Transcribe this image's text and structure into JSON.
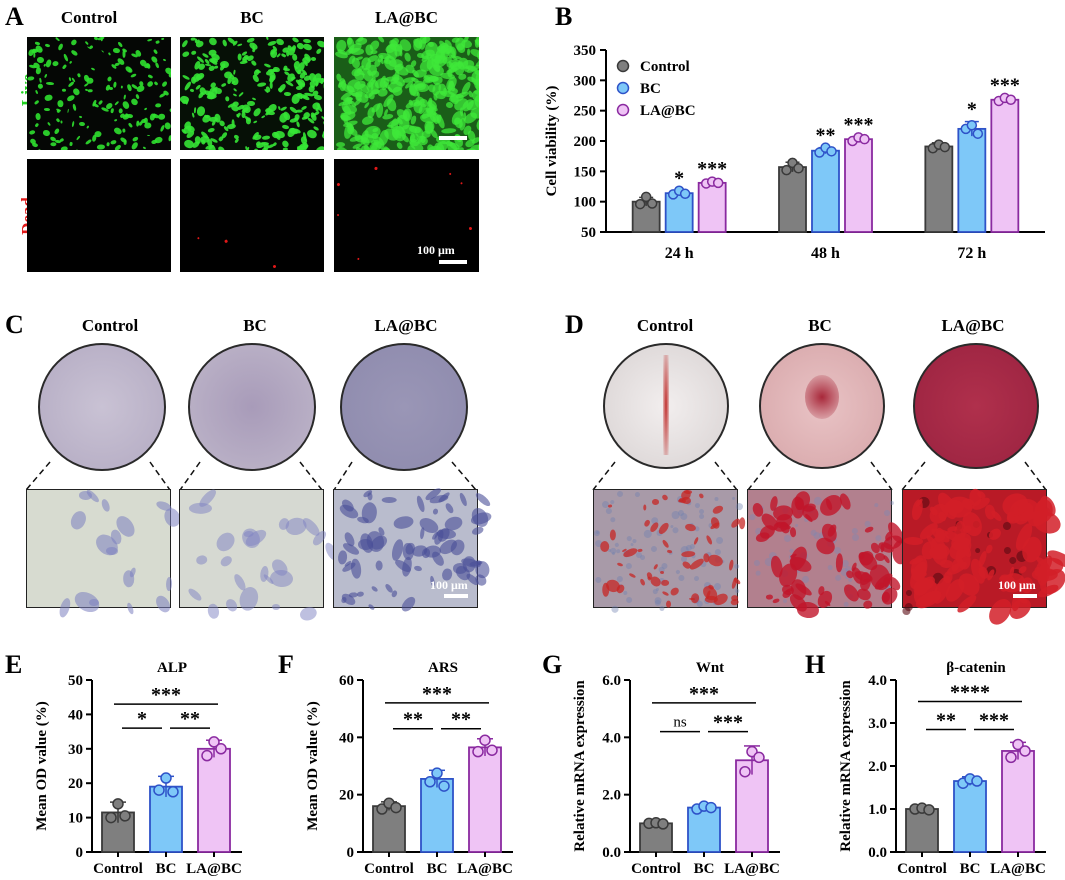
{
  "panels": {
    "A": {
      "letter": "A",
      "columns": [
        "Control",
        "BC",
        "LA@BC"
      ],
      "rows": [
        "Live",
        "Dead"
      ],
      "scale": "100 μm",
      "colors": {
        "live": "#1fd11f",
        "dead": "#e01818"
      }
    },
    "C": {
      "letter": "C",
      "columns": [
        "Control",
        "BC",
        "LA@BC"
      ],
      "scale": "100 μm"
    },
    "D": {
      "letter": "D",
      "columns": [
        "Control",
        "BC",
        "LA@BC"
      ],
      "scale": "100 μm"
    },
    "B": {
      "letter": "B"
    },
    "E": {
      "letter": "E"
    },
    "F": {
      "letter": "F"
    },
    "G": {
      "letter": "G"
    },
    "H": {
      "letter": "H"
    }
  },
  "colors": {
    "Control": "#7f7f7f",
    "BC": "#7ec8f8",
    "LA@BC": "#efc4f5",
    "edge_Control": "#3a3a3a",
    "edge_BC": "#2e52c8",
    "edge_LA@BC": "#8a2aa0"
  },
  "chart_data": [
    {
      "id": "B",
      "type": "bar",
      "categories": [
        "24 h",
        "48 h",
        "72 h"
      ],
      "series": [
        {
          "name": "Control",
          "values": [
            100,
            157,
            191
          ],
          "err": [
            7,
            8,
            6
          ],
          "points": [
            [
              96,
              108,
              97
            ],
            [
              152,
              164,
              155
            ],
            [
              188,
              194,
              190
            ]
          ],
          "sig": [
            "",
            "",
            ""
          ]
        },
        {
          "name": "BC",
          "values": [
            114,
            184,
            220
          ],
          "err": [
            4,
            5,
            12
          ],
          "points": [
            [
              112,
              118,
              113
            ],
            [
              181,
              189,
              183
            ],
            [
              220,
              226,
              212
            ]
          ],
          "sig": [
            "*",
            "**",
            "*"
          ]
        },
        {
          "name": "LA@BC",
          "values": [
            131,
            203,
            268
          ],
          "err": [
            3,
            4,
            4
          ],
          "points": [
            [
              130,
              133,
              131
            ],
            [
              200,
              206,
              203
            ],
            [
              266,
              271,
              268
            ]
          ],
          "sig": [
            "***",
            "***",
            "***"
          ]
        }
      ],
      "ylabel": "Cell viability (%)",
      "ylim": [
        50,
        350
      ],
      "yticks": [
        50,
        100,
        150,
        200,
        250,
        300,
        350
      ],
      "legend": "top-left"
    },
    {
      "id": "E",
      "type": "bar",
      "title": "ALP",
      "categories": [
        "Control",
        "BC",
        "LA@BC"
      ],
      "values": [
        11.5,
        19,
        30
      ],
      "err": [
        3,
        3,
        2.5
      ],
      "points": [
        [
          10,
          14,
          10.5
        ],
        [
          18,
          21.5,
          17.5
        ],
        [
          28,
          32,
          30
        ]
      ],
      "ylabel": "Mean OD value (%)",
      "ylim": [
        0,
        50
      ],
      "yticks": [
        0,
        10,
        20,
        30,
        40,
        50
      ],
      "sig": [
        {
          "a": 0,
          "b": 2,
          "label": "***",
          "level": 43
        },
        {
          "a": 0,
          "b": 1,
          "label": "*",
          "level": 36
        },
        {
          "a": 1,
          "b": 2,
          "label": "**",
          "level": 36
        }
      ]
    },
    {
      "id": "F",
      "type": "bar",
      "title": "ARS",
      "categories": [
        "Control",
        "BC",
        "LA@BC"
      ],
      "values": [
        16,
        25.5,
        36.5
      ],
      "err": [
        1.5,
        3,
        3
      ],
      "points": [
        [
          15,
          17,
          15.5
        ],
        [
          24.5,
          27.5,
          23
        ],
        [
          35,
          39,
          35.5
        ]
      ],
      "ylabel": "Mean OD value (%)",
      "ylim": [
        0,
        60
      ],
      "yticks": [
        0,
        20,
        40,
        60
      ],
      "sig": [
        {
          "a": 0,
          "b": 2,
          "label": "***",
          "level": 52
        },
        {
          "a": 0,
          "b": 1,
          "label": "**",
          "level": 43
        },
        {
          "a": 1,
          "b": 2,
          "label": "**",
          "level": 43
        }
      ]
    },
    {
      "id": "G",
      "type": "bar",
      "title": "Wnt",
      "categories": [
        "Control",
        "BC",
        "LA@BC"
      ],
      "values": [
        1.0,
        1.55,
        3.2
      ],
      "err": [
        0.05,
        0.08,
        0.5
      ],
      "points": [
        [
          1.0,
          1.02,
          0.98
        ],
        [
          1.5,
          1.6,
          1.55
        ],
        [
          2.8,
          3.5,
          3.3
        ]
      ],
      "ylabel": "Relative mRNA expression",
      "ylim": [
        0,
        6
      ],
      "yticks": [
        "0.0",
        "2.0",
        "4.0",
        "6.0"
      ],
      "sig": [
        {
          "a": 0,
          "b": 2,
          "label": "***",
          "level": 5.2
        },
        {
          "a": 0,
          "b": 1,
          "label": "ns",
          "level": 4.2
        },
        {
          "a": 1,
          "b": 2,
          "label": "***",
          "level": 4.2
        }
      ]
    },
    {
      "id": "H",
      "type": "bar",
      "title": "β-catenin",
      "categories": [
        "Control",
        "BC",
        "LA@BC"
      ],
      "values": [
        1.0,
        1.65,
        2.35
      ],
      "err": [
        0.04,
        0.1,
        0.2
      ],
      "points": [
        [
          1.0,
          1.02,
          0.98
        ],
        [
          1.6,
          1.7,
          1.65
        ],
        [
          2.2,
          2.5,
          2.35
        ]
      ],
      "ylabel": "Relative mRNA expression",
      "ylim": [
        0,
        4
      ],
      "yticks": [
        "0.0",
        "1.0",
        "2.0",
        "3.0",
        "4.0"
      ],
      "sig": [
        {
          "a": 0,
          "b": 2,
          "label": "****",
          "level": 3.5
        },
        {
          "a": 0,
          "b": 1,
          "label": "**",
          "level": 2.85
        },
        {
          "a": 1,
          "b": 2,
          "label": "***",
          "level": 2.85
        }
      ]
    }
  ]
}
